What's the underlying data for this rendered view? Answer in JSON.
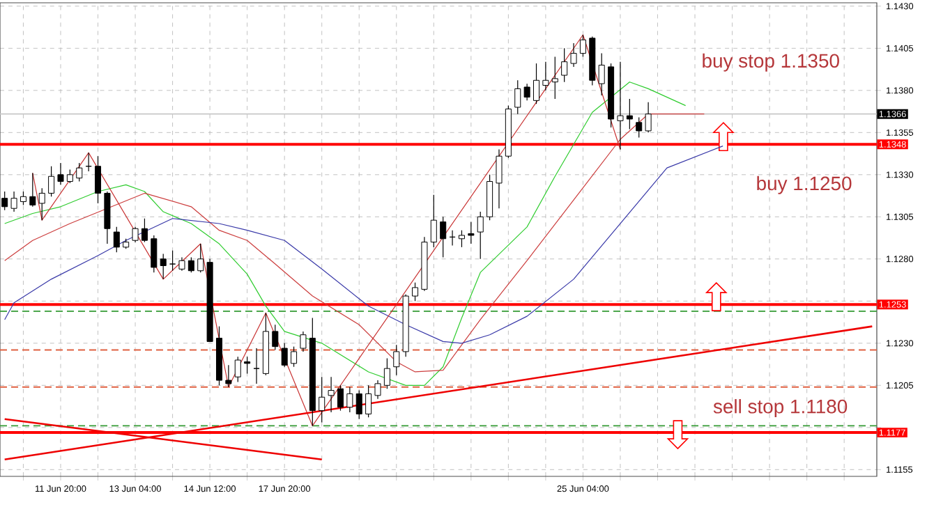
{
  "chart_data": {
    "type": "candlestick",
    "categories": [
      null,
      null,
      null,
      null,
      null,
      null,
      "11 Jun 20:00",
      null,
      null,
      null,
      null,
      null,
      null,
      null,
      "13 Jun 04:00",
      null,
      null,
      null,
      null,
      null,
      null,
      null,
      "14 Jun 12:00",
      null,
      null,
      null,
      null,
      null,
      null,
      null,
      "17 Jun 20:00",
      null,
      null,
      null,
      null,
      null,
      null,
      null,
      null,
      null,
      null,
      null,
      null,
      null,
      null,
      null,
      null,
      null,
      null,
      null,
      null,
      null,
      null,
      null,
      null,
      null,
      null,
      null,
      null,
      null,
      null,
      null,
      "25 Jun 04:00",
      null,
      null,
      null,
      null,
      null,
      null,
      null,
      null,
      null,
      null,
      null,
      null,
      null,
      null,
      null,
      null,
      null,
      null,
      null,
      null,
      null,
      null,
      null,
      null,
      null,
      null,
      null,
      null,
      null,
      null,
      null
    ],
    "ohlc": [
      [
        1.1316,
        1.132,
        1.1309,
        1.1311
      ],
      [
        1.131,
        1.132,
        1.1308,
        1.1316
      ],
      [
        1.1314,
        1.132,
        1.1312,
        1.1317
      ],
      [
        1.1317,
        1.1331,
        1.1311,
        1.1312
      ],
      [
        1.1313,
        1.1322,
        1.1303,
        1.1319
      ],
      [
        1.1319,
        1.1335,
        1.1317,
        1.1329
      ],
      [
        1.133,
        1.1337,
        1.1324,
        1.1326
      ],
      [
        1.1326,
        1.1333,
        1.1325,
        1.133
      ],
      [
        1.1328,
        1.1337,
        1.1326,
        1.1334
      ],
      [
        1.1335,
        1.1343,
        1.1332,
        1.1335
      ],
      [
        1.1335,
        1.1341,
        1.1313,
        1.1319
      ],
      [
        1.1319,
        1.132,
        1.1289,
        1.1298
      ],
      [
        1.1296,
        1.1299,
        1.1284,
        1.1287
      ],
      [
        1.1287,
        1.1292,
        1.1286,
        1.129
      ],
      [
        1.1291,
        1.1299,
        1.129,
        1.1298
      ],
      [
        1.1298,
        1.1304,
        1.129,
        1.1291
      ],
      [
        1.1292,
        1.1294,
        1.1272,
        1.1275
      ],
      [
        1.128,
        1.1283,
        1.1268,
        1.1276
      ],
      [
        1.1277,
        1.1285,
        1.1273,
        1.1277
      ],
      [
        1.1274,
        1.1281,
        1.1273,
        1.1279
      ],
      [
        1.1279,
        1.1281,
        1.1272,
        1.1273
      ],
      [
        1.1273,
        1.1289,
        1.1272,
        1.128
      ],
      [
        1.1278,
        1.128,
        1.1231,
        1.1231
      ],
      [
        1.1233,
        1.124,
        1.1205,
        1.1208
      ],
      [
        1.1208,
        1.1217,
        1.1204,
        1.1206
      ],
      [
        1.121,
        1.1222,
        1.1207,
        1.122
      ],
      [
        1.1219,
        1.1222,
        1.1212,
        1.1218
      ],
      [
        1.1215,
        1.1227,
        1.1206,
        1.1215
      ],
      [
        1.1212,
        1.1248,
        1.1211,
        1.1237
      ],
      [
        1.1237,
        1.1241,
        1.1226,
        1.1228
      ],
      [
        1.1227,
        1.123,
        1.1216,
        1.1217
      ],
      [
        1.1218,
        1.1228,
        1.1216,
        1.1225
      ],
      [
        1.1227,
        1.1237,
        1.1225,
        1.1235
      ],
      [
        1.1233,
        1.1245,
        1.1181,
        1.119
      ],
      [
        1.119,
        1.121,
        1.1183,
        1.1198
      ],
      [
        1.1199,
        1.121,
        1.1189,
        1.1202
      ],
      [
        1.1203,
        1.1205,
        1.119,
        1.1192
      ],
      [
        1.1192,
        1.1204,
        1.1189,
        1.12
      ],
      [
        1.12,
        1.1202,
        1.1185,
        1.1188
      ],
      [
        1.1188,
        1.1205,
        1.1186,
        1.12
      ],
      [
        1.1199,
        1.1208,
        1.1197,
        1.1206
      ],
      [
        1.1205,
        1.1221,
        1.1203,
        1.1215
      ],
      [
        1.1216,
        1.1229,
        1.1211,
        1.1225
      ],
      [
        1.1225,
        1.1259,
        1.1222,
        1.1258
      ],
      [
        1.1258,
        1.1266,
        1.1255,
        1.1263
      ],
      [
        1.1262,
        1.1293,
        1.1261,
        1.129
      ],
      [
        1.129,
        1.1318,
        1.1287,
        1.1303
      ],
      [
        1.1302,
        1.1305,
        1.1281,
        1.1292
      ],
      [
        1.1293,
        1.1297,
        1.1288,
        1.1293
      ],
      [
        1.1292,
        1.1297,
        1.1287,
        1.1294
      ],
      [
        1.1295,
        1.1302,
        1.1289,
        1.1294
      ],
      [
        1.1296,
        1.1308,
        1.128,
        1.1305
      ],
      [
        1.1305,
        1.133,
        1.1303,
        1.1326
      ],
      [
        1.1325,
        1.1345,
        1.131,
        1.1341
      ],
      [
        1.1341,
        1.1371,
        1.134,
        1.1369
      ],
      [
        1.137,
        1.1386,
        1.1366,
        1.1381
      ],
      [
        1.1382,
        1.1384,
        1.1374,
        1.1376
      ],
      [
        1.1374,
        1.1396,
        1.1372,
        1.1386
      ],
      [
        1.1383,
        1.1397,
        1.138,
        1.1386
      ],
      [
        1.1385,
        1.14,
        1.1375,
        1.1387
      ],
      [
        1.1389,
        1.1405,
        1.1385,
        1.1397
      ],
      [
        1.1396,
        1.1408,
        1.1394,
        1.1402
      ],
      [
        1.1402,
        1.1413,
        1.14,
        1.141
      ],
      [
        1.1411,
        1.1412,
        1.1383,
        1.1386
      ],
      [
        1.1384,
        1.1402,
        1.1377,
        1.1395
      ],
      [
        1.1394,
        1.1396,
        1.1358,
        1.1363
      ],
      [
        1.1362,
        1.1397,
        1.1345,
        1.1365
      ],
      [
        1.1365,
        1.1375,
        1.1357,
        1.1363
      ],
      [
        1.1361,
        1.1364,
        1.1352,
        1.1356
      ],
      [
        1.1356,
        1.1373,
        1.1355,
        1.1366
      ],
      null,
      null,
      null,
      null,
      null,
      null,
      null,
      null,
      null,
      null,
      null,
      null,
      null,
      null,
      null,
      null,
      null,
      null,
      null,
      null,
      null,
      null,
      null,
      null
    ],
    "series": [
      {
        "type": "line",
        "color": "#2ecc2e",
        "values": [
          1.1301,
          null,
          null,
          1.1307,
          null,
          null,
          1.1311,
          null,
          null,
          null,
          1.132,
          null,
          null,
          1.1324,
          null,
          1.132,
          null,
          1.1308,
          null,
          null,
          1.1301,
          null,
          null,
          1.1289,
          null,
          null,
          1.1271,
          null,
          1.1252,
          null,
          1.1237,
          null,
          null,
          null,
          1.123,
          null,
          null,
          null,
          null,
          1.1213,
          null,
          null,
          null,
          1.1205,
          null,
          1.1205,
          null,
          1.1216,
          null,
          1.1245,
          null,
          1.1272,
          null,
          null,
          null,
          null,
          1.1299,
          null,
          null,
          1.1329,
          null,
          null,
          null,
          1.1367,
          null,
          null,
          null,
          1.1385,
          null,
          1.1381,
          null,
          null,
          null,
          1.1371,
          null,
          null,
          null,
          null,
          null,
          null,
          null,
          null,
          null,
          null,
          null,
          null,
          null,
          null,
          null,
          null,
          null,
          null,
          null,
          null
        ]
      },
      {
        "type": "line",
        "color": "#cc3d3d",
        "values": [
          1.1279,
          null,
          null,
          1.1291,
          null,
          null,
          null,
          1.1301,
          null,
          null,
          null,
          1.131,
          null,
          null,
          null,
          1.1319,
          null,
          null,
          null,
          null,
          1.1311,
          null,
          null,
          1.1297,
          null,
          null,
          1.1291,
          null,
          null,
          1.1277,
          null,
          null,
          null,
          1.1258,
          null,
          null,
          null,
          null,
          1.1241,
          null,
          null,
          null,
          1.1219,
          null,
          1.1213,
          null,
          null,
          1.1214,
          null,
          null,
          null,
          1.1244,
          null,
          null,
          null,
          null,
          1.1279,
          null,
          null,
          null,
          null,
          1.1315,
          null,
          null,
          null,
          null,
          1.1351,
          null,
          null,
          1.1366,
          null,
          null,
          null,
          null,
          null,
          1.1366,
          null,
          null,
          null,
          null,
          null,
          null,
          null,
          null,
          null,
          null,
          null,
          null,
          null,
          null,
          null,
          null,
          null,
          null
        ]
      },
      {
        "type": "line",
        "color": "#3838a8",
        "values": [
          1.1244,
          1.1254,
          null,
          null,
          null,
          1.1268,
          null,
          null,
          null,
          null,
          1.1282,
          null,
          null,
          1.1291,
          null,
          null,
          null,
          null,
          1.1304,
          null,
          null,
          null,
          null,
          1.1301,
          null,
          null,
          1.1297,
          null,
          null,
          null,
          1.1291,
          null,
          null,
          null,
          1.1274,
          null,
          null,
          null,
          null,
          1.1252,
          null,
          null,
          null,
          1.1241,
          null,
          null,
          null,
          1.1231,
          null,
          1.123,
          null,
          null,
          1.1235,
          null,
          null,
          null,
          1.1246,
          null,
          null,
          null,
          null,
          1.1268,
          null,
          null,
          null,
          null,
          1.1301,
          null,
          null,
          null,
          null,
          1.1334,
          null,
          null,
          null,
          null,
          null,
          1.1347,
          null,
          null,
          null,
          null,
          null,
          null,
          null,
          null,
          null,
          null,
          null,
          null,
          null,
          null,
          null,
          null
        ]
      },
      {
        "type": "line",
        "color": "#c83232",
        "values": [
          null,
          null,
          null,
          1.1331,
          1.1303,
          null,
          null,
          null,
          null,
          1.1343,
          null,
          null,
          null,
          null,
          null,
          null,
          null,
          1.1268,
          null,
          null,
          null,
          1.1289,
          null,
          null,
          1.1204,
          null,
          null,
          null,
          1.1248,
          null,
          null,
          null,
          null,
          1.1181,
          null,
          null,
          null,
          null,
          null,
          null,
          null,
          null,
          null,
          null,
          null,
          null,
          null,
          null,
          null,
          null,
          null,
          null,
          null,
          null,
          null,
          null,
          null,
          null,
          null,
          null,
          null,
          null,
          1.1413,
          null,
          null,
          null,
          1.1345,
          null,
          null,
          null,
          null,
          null,
          null,
          null,
          null,
          null,
          null,
          null,
          null,
          null,
          null,
          null,
          null,
          null,
          null,
          null,
          null,
          null,
          null,
          null,
          null,
          null,
          null,
          null
        ]
      },
      {
        "type": "line",
        "color": "#ee0000",
        "values": [
          1.1161,
          null,
          null,
          null,
          null,
          null,
          null,
          null,
          null,
          null,
          null,
          null,
          null,
          null,
          null,
          null,
          null,
          null,
          null,
          null,
          null,
          null,
          null,
          null,
          null,
          null,
          null,
          null,
          null,
          null,
          null,
          null,
          null,
          null,
          null,
          null,
          null,
          null,
          null,
          null,
          null,
          null,
          null,
          null,
          null,
          null,
          null,
          null,
          null,
          null,
          null,
          null,
          null,
          null,
          null,
          null,
          null,
          null,
          null,
          null,
          null,
          null,
          null,
          null,
          null,
          null,
          null,
          null,
          null,
          null,
          null,
          null,
          null,
          null,
          null,
          null,
          null,
          null,
          null,
          null,
          null,
          null,
          null,
          null,
          null,
          null,
          null,
          null,
          null,
          null,
          null,
          null,
          null,
          1.124
        ]
      },
      {
        "type": "line",
        "color": "#ee0000",
        "values": [
          1.1185,
          null,
          null,
          null,
          null,
          null,
          null,
          null,
          null,
          null,
          null,
          null,
          null,
          null,
          null,
          null,
          null,
          null,
          null,
          null,
          null,
          null,
          null,
          null,
          null,
          null,
          null,
          null,
          null,
          null,
          null,
          null,
          null,
          null,
          1.1161,
          null,
          null,
          null,
          null,
          null,
          null,
          null,
          null,
          null,
          null,
          null,
          null,
          null,
          null,
          null,
          null,
          null,
          null,
          null,
          null,
          null,
          null,
          null,
          null,
          null,
          null,
          null,
          null,
          null,
          null,
          null,
          null,
          null,
          null,
          null,
          null,
          null,
          null,
          null,
          null,
          null,
          null,
          null,
          null,
          null,
          null,
          null,
          null,
          null,
          null,
          null,
          null,
          null,
          null,
          null,
          null,
          null,
          null,
          null
        ]
      }
    ],
    "ylim": [
      1.1151,
      1.1432
    ],
    "yticks": [
      1.1155,
      {
        "value": 1.118,
        "label": null
      },
      1.1205,
      {
        "value": 1.123,
        "label": "1.1230"
      },
      {
        "value": 1.1255,
        "label": null
      },
      {
        "value": 1.128,
        "label": "1.1280"
      },
      1.1305,
      {
        "value": 1.133,
        "label": "1.1330"
      },
      1.1355,
      {
        "value": 1.138,
        "label": "1.1380"
      },
      1.1405,
      {
        "value": 1.143,
        "label": "1.1430"
      }
    ],
    "grid": true,
    "ref_lines": [
      {
        "axis": "y",
        "value": 1.1348,
        "label": "1.1348",
        "color": "#ff0000"
      },
      {
        "axis": "y",
        "value": 1.1253,
        "label": "1.1253",
        "color": "#ff0000"
      },
      {
        "axis": "y",
        "value": 1.1177,
        "label": "1.1177",
        "color": "#ff0000"
      },
      {
        "axis": "y",
        "value": 1.1366,
        "label": "1.1366",
        "color": "#c8c8c8"
      },
      {
        "axis": "y",
        "value": 1.1249,
        "color": "#339933",
        "line_style": "dashed"
      },
      {
        "axis": "y",
        "value": 1.1226,
        "color": "#e06040",
        "line_style": "dashed"
      },
      {
        "axis": "y",
        "value": 1.1204,
        "color": "#e06040",
        "line_style": "dashed"
      },
      {
        "axis": "y",
        "value": 1.1181,
        "color": "#339933",
        "line_style": "dashed"
      }
    ],
    "annotations": [
      "buy stop 1.1350",
      "buy 1.1250",
      "sell stop 1.1180"
    ]
  }
}
